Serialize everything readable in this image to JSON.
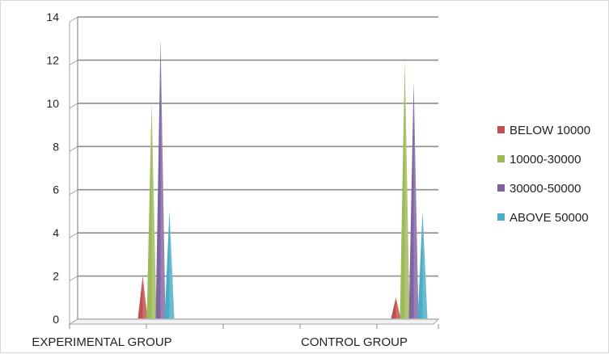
{
  "chart_data": {
    "type": "bar",
    "title": "",
    "xlabel": "",
    "ylabel": "",
    "ylim": [
      0,
      14
    ],
    "yticks": [
      0,
      2,
      4,
      6,
      8,
      10,
      12,
      14
    ],
    "grid": true,
    "legend_position": "right",
    "categories": [
      "EXPERIMENTAL GROUP",
      "CONTROL GROUP"
    ],
    "series": [
      {
        "name": "BELOW 10000",
        "color": "#c0504d",
        "values": [
          2,
          1
        ]
      },
      {
        "name": "10000-30000",
        "color": "#9bbb59",
        "values": [
          10,
          12
        ]
      },
      {
        "name": "30000-50000",
        "color": "#8064a2",
        "values": [
          13,
          11
        ]
      },
      {
        "name": "ABOVE 50000",
        "color": "#4bacc6",
        "values": [
          5,
          5
        ]
      }
    ]
  }
}
